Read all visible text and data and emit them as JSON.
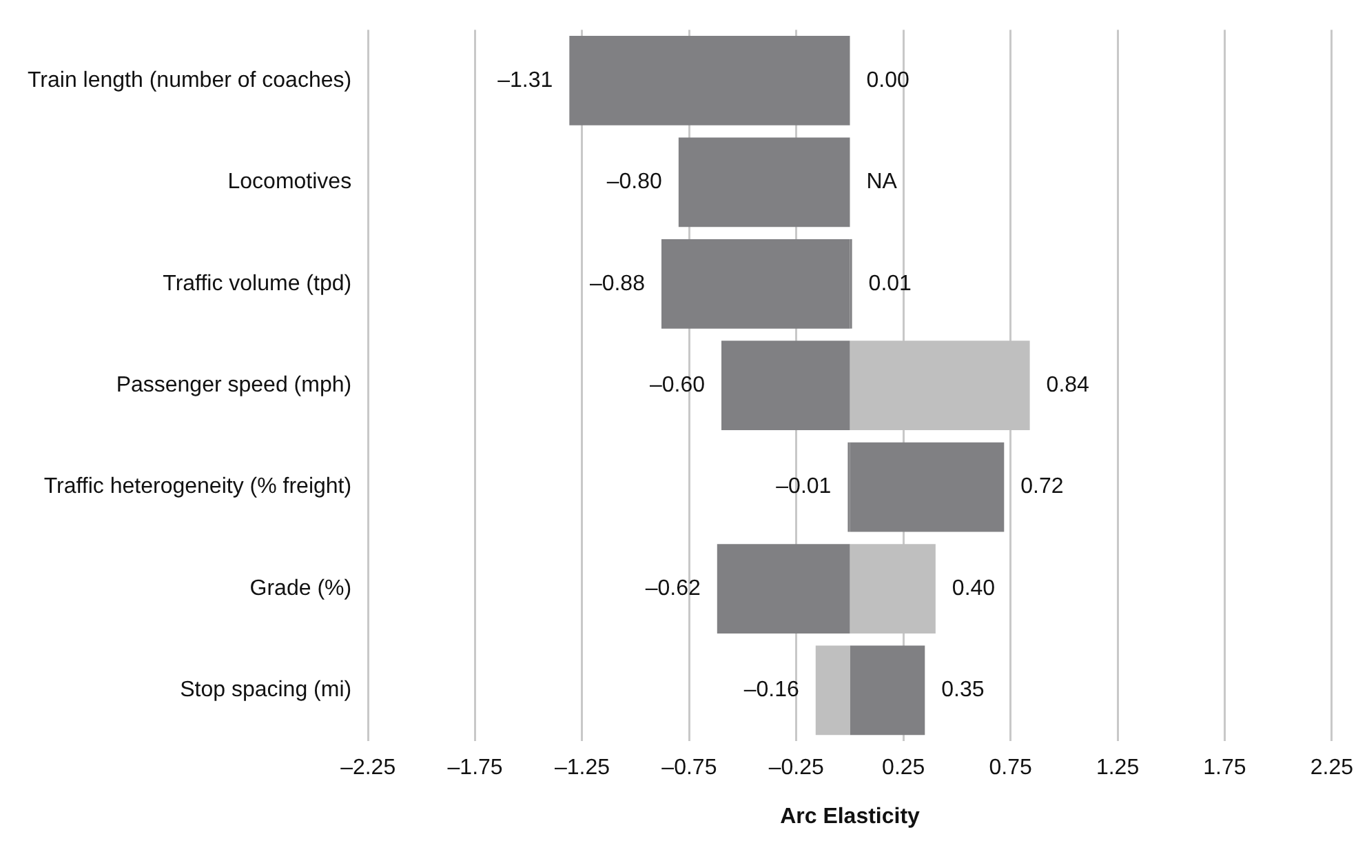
{
  "chart_data": {
    "type": "bar",
    "orientation": "horizontal",
    "stacked": true,
    "xlabel": "Arc Elasticity",
    "categories": [
      "Train length (number of coaches)",
      "Locomotives",
      "Traffic volume (tpd)",
      "Passenger speed (mph)",
      "Traffic heterogeneity (% freight)",
      "Grade (%)",
      "Stop spacing (mi)"
    ],
    "series": [
      {
        "colors": [
          "#808083",
          "#808083",
          "#808083",
          "#808083",
          "#808083",
          "#808083",
          "#bfbfbf"
        ],
        "values": [
          -1.31,
          -0.8,
          -0.88,
          -0.6,
          -0.01,
          -0.62,
          -0.16
        ],
        "value_labels": [
          "–1.31",
          "–0.80",
          "–0.88",
          "–0.60",
          "–0.01",
          "–0.62",
          "–0.16"
        ]
      },
      {
        "colors": [
          "#808083",
          "#808083",
          "#808083",
          "#bfbfbf",
          "#808083",
          "#bfbfbf",
          "#808083"
        ],
        "values": [
          0,
          null,
          0.01,
          0.84,
          0.72,
          0.4,
          0.35
        ],
        "value_labels": [
          "0.00",
          "NA",
          "0.01",
          "0.84",
          "0.72",
          "0.40",
          "0.35"
        ]
      }
    ],
    "xlim": [
      -2.25,
      2.25
    ],
    "xticks": [
      {
        "value": -2.25,
        "label": "–2.25"
      },
      {
        "value": -1.75,
        "label": "–1.75"
      },
      {
        "value": -1.25,
        "label": "–1.25"
      },
      {
        "value": -0.75,
        "label": "–0.75"
      },
      {
        "value": -0.25,
        "label": "–0.25"
      },
      0.25,
      0.75,
      1.25,
      1.75,
      2.25
    ],
    "grid": "x",
    "legend": false
  }
}
